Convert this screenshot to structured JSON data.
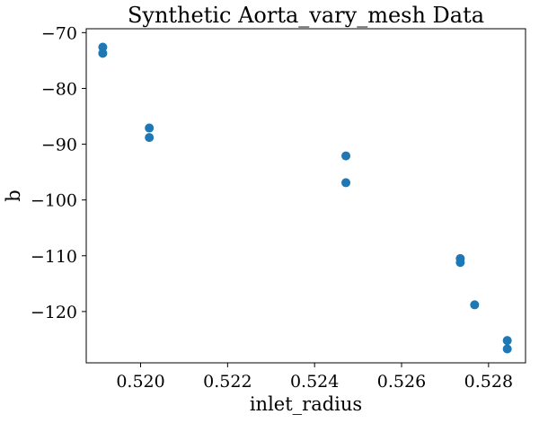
{
  "chart_data": {
    "type": "scatter",
    "title": "Synthetic Aorta_vary_mesh Data",
    "xlabel": "inlet_radius",
    "ylabel": "b",
    "xlim": [
      0.51875,
      0.52885
    ],
    "ylim": [
      -129.2,
      -69.3
    ],
    "xticks": [
      0.52,
      0.522,
      0.524,
      0.526,
      0.528
    ],
    "xtick_labels": [
      "0.520",
      "0.522",
      "0.524",
      "0.526",
      "0.528"
    ],
    "yticks": [
      -70,
      -80,
      -90,
      -100,
      -110,
      -120
    ],
    "ytick_labels": [
      "−70",
      "−80",
      "−90",
      "−100",
      "−110",
      "−120"
    ],
    "grid": false,
    "marker_color": "#1f77b4",
    "series": [
      {
        "points": [
          [
            0.51913,
            -72.6
          ],
          [
            0.51913,
            -73.7
          ],
          [
            0.5202,
            -87.1
          ],
          [
            0.5202,
            -88.8
          ],
          [
            0.52472,
            -92.1
          ],
          [
            0.52472,
            -96.9
          ],
          [
            0.52735,
            -110.5
          ],
          [
            0.52735,
            -111.2
          ],
          [
            0.52768,
            -118.8
          ],
          [
            0.52843,
            -125.2
          ],
          [
            0.52843,
            -126.7
          ]
        ]
      }
    ]
  }
}
